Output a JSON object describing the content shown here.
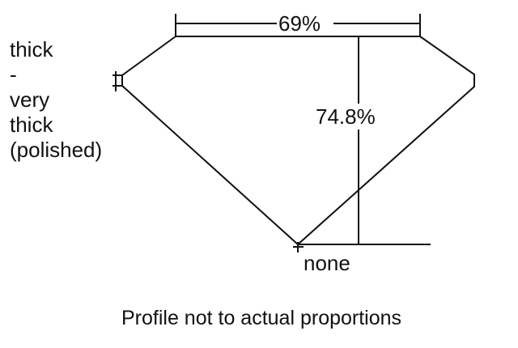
{
  "girdle_label": [
    "thick",
    "-",
    "very",
    "thick",
    "(polished)"
  ],
  "table_label": "69%",
  "depth_label": "74.8%",
  "culet_label": "none",
  "caption": "Profile not to actual proportions"
}
